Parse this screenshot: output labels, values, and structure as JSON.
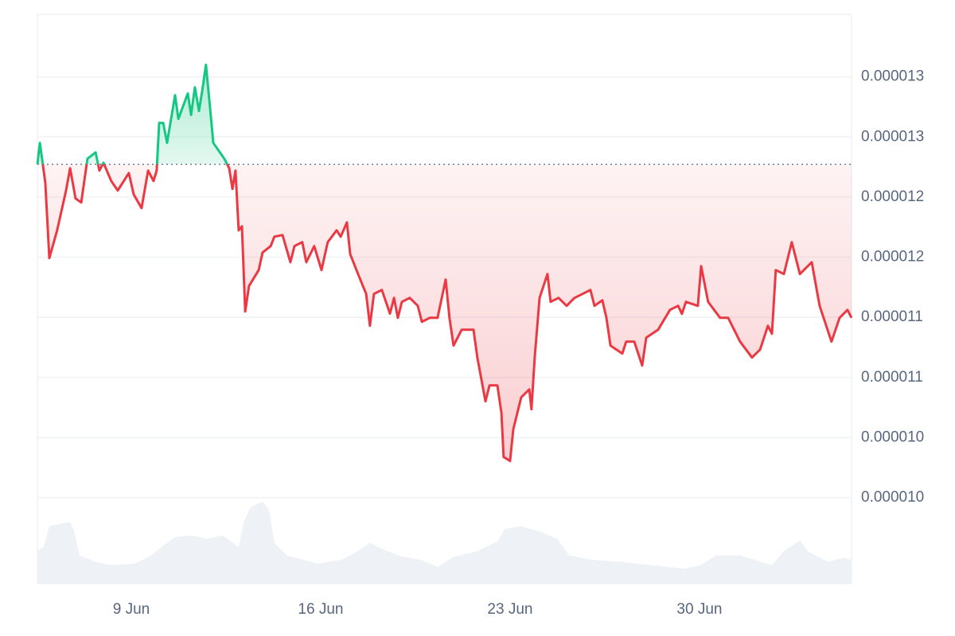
{
  "chart_data": {
    "type": "line",
    "x": [
      5.53,
      5.62,
      5.82,
      5.97,
      6.26,
      6.59,
      6.74,
      6.94,
      7.15,
      7.38,
      7.68,
      7.82,
      7.97,
      8.26,
      8.5,
      8.91,
      9.09,
      9.38,
      9.62,
      9.82,
      9.94,
      10.03,
      10.18,
      10.32,
      10.62,
      10.74,
      11.09,
      11.21,
      11.35,
      11.5,
      11.62,
      11.76,
      11.88,
      12.03,
      12.44,
      12.62,
      12.74,
      12.85,
      12.97,
      13.09,
      13.21,
      13.35,
      13.71,
      13.85,
      14.15,
      14.29,
      14.59,
      14.88,
      15.03,
      15.32,
      15.47,
      15.76,
      16.03,
      16.26,
      16.59,
      16.74,
      16.97,
      17.09,
      17.38,
      17.68,
      17.82,
      17.97,
      18.26,
      18.56,
      18.71,
      18.85,
      19.0,
      19.29,
      19.59,
      19.74,
      20.03,
      20.32,
      20.62,
      20.76,
      20.91,
      21.21,
      21.65,
      21.79,
      22.09,
      22.24,
      22.53,
      22.68,
      22.76,
      23.0,
      23.12,
      23.41,
      23.71,
      23.79,
      23.91,
      24.09,
      24.38,
      24.5,
      24.79,
      25.09,
      25.38,
      25.68,
      25.97,
      26.12,
      26.41,
      26.56,
      26.71,
      27.15,
      27.29,
      27.59,
      27.88,
      28.03,
      28.47,
      28.91,
      29.21,
      29.35,
      29.5,
      29.94,
      30.06,
      30.32,
      30.76,
      31.06,
      31.5,
      31.94,
      32.24,
      32.53,
      32.68,
      32.82,
      33.12,
      33.41,
      33.71,
      34.15,
      34.44,
      34.88,
      35.18,
      35.47,
      35.62
    ],
    "values": [
      1.2773e-05,
      1.2951e-05,
      1.2621e-05,
      1.1993e-05,
      1.2224e-05,
      1.2555e-05,
      1.274e-05,
      1.2489e-05,
      1.2455e-05,
      1.2819e-05,
      1.2872e-05,
      1.272e-05,
      1.2786e-05,
      1.2634e-05,
      1.2555e-05,
      1.27e-05,
      1.2522e-05,
      1.2409e-05,
      1.272e-05,
      1.2634e-05,
      1.272e-05,
      1.3117e-05,
      1.3117e-05,
      1.2951e-05,
      1.3348e-05,
      1.315e-05,
      1.3362e-05,
      1.3183e-05,
      1.3414e-05,
      1.3216e-05,
      1.3381e-05,
      1.36e-05,
      1.3315e-05,
      1.2951e-05,
      1.2819e-05,
      1.274e-05,
      1.2568e-05,
      1.272e-05,
      1.2224e-05,
      1.2257e-05,
      1.1549e-05,
      1.1761e-05,
      1.1893e-05,
      1.2039e-05,
      1.2092e-05,
      1.2171e-05,
      1.2184e-05,
      1.1959e-05,
      1.2092e-05,
      1.2125e-05,
      1.1959e-05,
      1.2092e-05,
      1.1893e-05,
      1.2125e-05,
      1.2224e-05,
      1.2171e-05,
      1.229e-05,
      1.2026e-05,
      1.186e-05,
      1.1695e-05,
      1.143e-05,
      1.1695e-05,
      1.1728e-05,
      1.1531e-05,
      1.1662e-05,
      1.1496e-05,
      1.1629e-05,
      1.1662e-05,
      1.1596e-05,
      1.1463e-05,
      1.1496e-05,
      1.1496e-05,
      1.1814e-05,
      1.1496e-05,
      1.1265e-05,
      1.1397e-05,
      1.1397e-05,
      1.1166e-05,
      1.0802e-05,
      1.0934e-05,
      1.0934e-05,
      1.0703e-05,
      1.0339e-05,
      1.0306e-05,
      1.057e-05,
      1.0835e-05,
      1.0901e-05,
      1.0736e-05,
      1.1166e-05,
      1.1662e-05,
      1.186e-05,
      1.1629e-05,
      1.1662e-05,
      1.1596e-05,
      1.1662e-05,
      1.1695e-05,
      1.1728e-05,
      1.1596e-05,
      1.1642e-05,
      1.1496e-05,
      1.1265e-05,
      1.1199e-05,
      1.1298e-05,
      1.1298e-05,
      1.1099e-05,
      1.1331e-05,
      1.1397e-05,
      1.1563e-05,
      1.1596e-05,
      1.1529e-05,
      1.1629e-05,
      1.1596e-05,
      1.1926e-05,
      1.1629e-05,
      1.1496e-05,
      1.1496e-05,
      1.1298e-05,
      1.1166e-05,
      1.1232e-05,
      1.143e-05,
      1.1364e-05,
      1.1893e-05,
      1.186e-05,
      1.2125e-05,
      1.186e-05,
      1.1959e-05,
      1.1596e-05,
      1.1298e-05,
      1.1496e-05,
      1.1562e-05,
      1.1496e-05
    ],
    "baseline": 1.2773e-05,
    "up_color": "#16c784",
    "down_color": "#ea3943",
    "volume": {
      "color": "#eef1f5",
      "ylim": [
        0,
        110
      ],
      "x": [
        5.53,
        5.76,
        5.97,
        6.35,
        6.74,
        6.88,
        7.09,
        7.68,
        8.26,
        9.15,
        9.74,
        10.18,
        10.62,
        11.21,
        11.79,
        12.38,
        12.97,
        13.15,
        13.41,
        13.85,
        14.09,
        14.29,
        14.74,
        15.32,
        15.91,
        16.79,
        17.38,
        17.82,
        18.12,
        18.85,
        19.74,
        20.32,
        20.91,
        21.79,
        22.53,
        22.82,
        23.41,
        24.15,
        24.74,
        25.18,
        25.91,
        27.09,
        28.26,
        29.44,
        30.03,
        30.62,
        31.5,
        32.68,
        33.12,
        33.71,
        34.0,
        34.74,
        35.32,
        35.62
      ],
      "values": [
        40,
        45,
        70,
        73,
        75,
        65,
        35,
        27,
        23,
        25,
        35,
        47,
        57,
        59,
        55,
        59,
        45,
        75,
        93,
        100,
        90,
        50,
        35,
        30,
        25,
        30,
        40,
        50,
        45,
        35,
        29,
        21,
        33,
        40,
        52,
        67,
        70,
        63,
        55,
        35,
        30,
        27,
        23,
        19,
        23,
        35,
        35,
        23,
        40,
        53,
        40,
        27,
        32,
        29
      ]
    },
    "xlim": [
      5.53,
      35.62
    ],
    "xticks": [
      {
        "value": 9,
        "label": "9 Jun"
      },
      {
        "value": 16,
        "label": "16 Jun"
      },
      {
        "value": 23,
        "label": "23 Jun"
      },
      {
        "value": 30,
        "label": "30 Jun"
      }
    ],
    "ylim": [
      9.28e-06,
      1.402e-05
    ],
    "yticks": [
      {
        "value": 1.35e-05,
        "label": "0.000013"
      },
      {
        "value": 1.3e-05,
        "label": "0.000013"
      },
      {
        "value": 1.25e-05,
        "label": "0.000012"
      },
      {
        "value": 1.2e-05,
        "label": "0.000012"
      },
      {
        "value": 1.15e-05,
        "label": "0.000011"
      },
      {
        "value": 1.1e-05,
        "label": "0.000011"
      },
      {
        "value": 1.05e-05,
        "label": "0.000010"
      },
      {
        "value": 1e-05,
        "label": "0.000010"
      }
    ],
    "grid": true
  }
}
